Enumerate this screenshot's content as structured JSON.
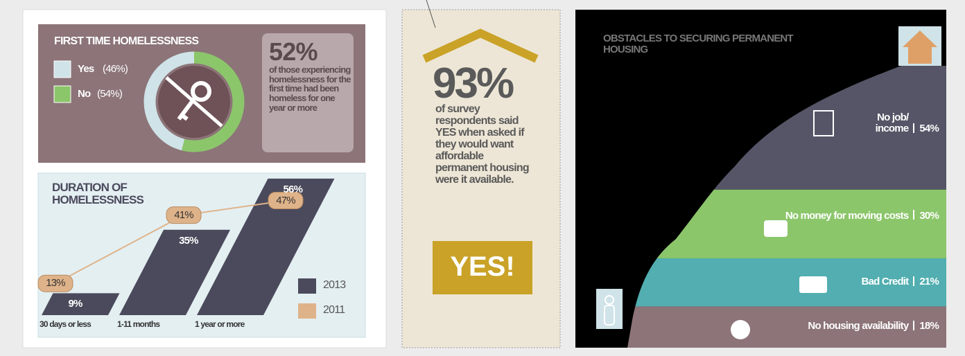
{
  "chart_data": [
    {
      "type": "pie",
      "title": "FIRST TIME HOMELESSNESS",
      "categories": [
        "Yes",
        "No"
      ],
      "values": [
        46,
        54
      ],
      "value_labels": [
        "(46%)",
        "(54%)"
      ],
      "colors": [
        "#cfe3e8",
        "#8cc66b"
      ],
      "stat": "52%",
      "stat_text": "of those experiencing homelessness for the first time had been homeless for one year or more"
    },
    {
      "type": "bar",
      "title": "DURATION OF HOMELESSNESS",
      "categories": [
        "30 days or less",
        "1-11 months",
        "1 year or more"
      ],
      "series": [
        {
          "name": "2013",
          "type": "bar",
          "color": "#4b4a5c",
          "values": [
            9,
            35,
            56
          ],
          "value_labels": [
            "9%",
            "35%",
            "56%"
          ]
        },
        {
          "name": "2011",
          "type": "line",
          "color": "#dfb38a",
          "values": [
            13,
            41,
            47
          ],
          "value_labels": [
            "13%",
            "41%",
            "47%"
          ]
        }
      ]
    },
    {
      "type": "mountain",
      "title": "OBSTACLES TO SECURING PERMANENT HOUSING",
      "categories": [
        "No housing availability",
        "Bad Credit",
        "No money for moving costs",
        "No job/ income"
      ],
      "values": [
        18,
        21,
        30,
        54
      ],
      "value_labels": [
        "18%",
        "21%",
        "30%",
        "54%"
      ],
      "colors": [
        "#8c7478",
        "#52aeb0",
        "#8cc66b",
        "#555567"
      ]
    }
  ],
  "callout": {
    "stat": "93%",
    "text": "of survey respondents said YES when asked if they would want affordable permanent housing were it available.",
    "button": "YES!"
  }
}
